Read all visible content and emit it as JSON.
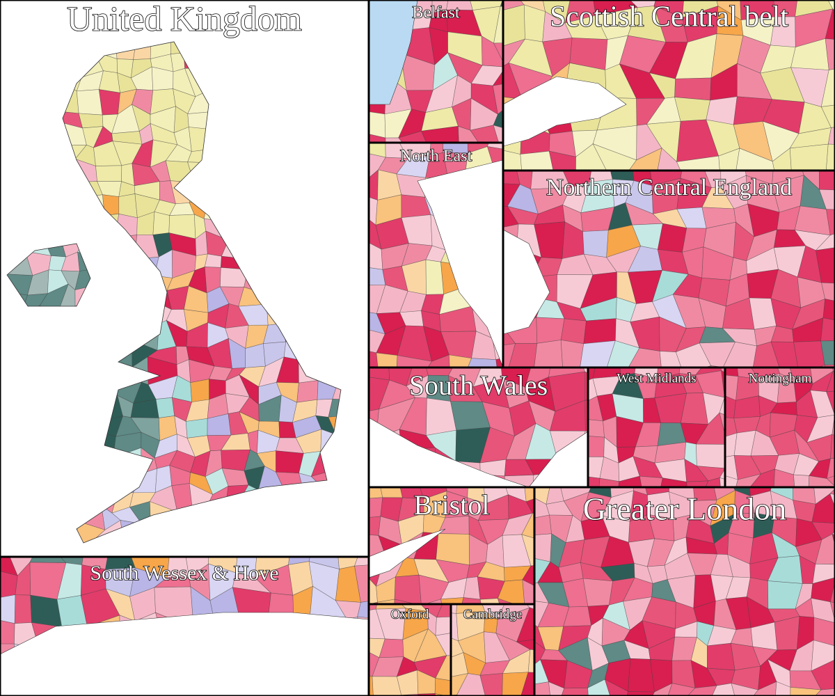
{
  "panels": [
    {
      "title": "United Kingdom"
    },
    {
      "title": "Belfast"
    },
    {
      "title": "Scottish Central belt"
    },
    {
      "title": "North East"
    },
    {
      "title": "Northern Central England"
    },
    {
      "title": "South Wales"
    },
    {
      "title": "West Midlands"
    },
    {
      "title": "Nottingham"
    },
    {
      "title": "Bristol"
    },
    {
      "title": "Greater London"
    },
    {
      "title": "South Wessex & Hove"
    },
    {
      "title": "Oxford"
    },
    {
      "title": "Cambridge"
    }
  ]
}
